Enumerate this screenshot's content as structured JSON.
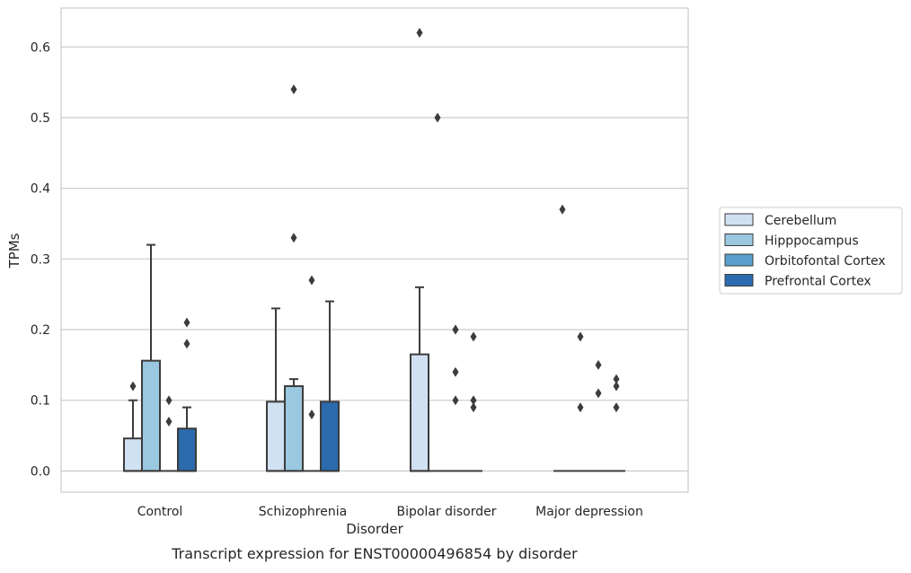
{
  "chart_data": {
    "type": "box",
    "caption": "Transcript expression for ENST00000496854 by disorder",
    "xlabel": "Disorder",
    "ylabel": "TPMs",
    "ylim": [
      -0.03,
      0.655
    ],
    "yticks": [
      0.0,
      0.1,
      0.2,
      0.3,
      0.4,
      0.5,
      0.6
    ],
    "ytick_labels": [
      "0.0",
      "0.1",
      "0.2",
      "0.3",
      "0.4",
      "0.5",
      "0.6"
    ],
    "grid": true,
    "legend_position": "right",
    "categories": [
      "Control",
      "Schizophrenia",
      "Bipolar disorder",
      "Major depression"
    ],
    "series": [
      {
        "name": "Cerebellum",
        "color": "#d0e1f2",
        "boxes": [
          {
            "q1": 0.0,
            "q3": 0.046,
            "median": 0.0,
            "whisker_low": 0.0,
            "whisker_high": 0.1,
            "outliers": [
              0.12
            ]
          },
          {
            "q1": 0.0,
            "q3": 0.098,
            "median": 0.0,
            "whisker_low": 0.0,
            "whisker_high": 0.23,
            "outliers": []
          },
          {
            "q1": 0.0,
            "q3": 0.165,
            "median": 0.0,
            "whisker_low": 0.0,
            "whisker_high": 0.26,
            "outliers": [
              0.62
            ]
          },
          {
            "q1": 0.0,
            "q3": 0.0,
            "median": 0.0,
            "whisker_low": 0.0,
            "whisker_high": 0.0,
            "outliers": [
              0.37
            ]
          }
        ]
      },
      {
        "name": "Hipppocampus",
        "color": "#9ac8e0",
        "boxes": [
          {
            "q1": 0.0,
            "q3": 0.156,
            "median": 0.0,
            "whisker_low": 0.0,
            "whisker_high": 0.32,
            "outliers": []
          },
          {
            "q1": 0.0,
            "q3": 0.12,
            "median": 0.0,
            "whisker_low": 0.0,
            "whisker_high": 0.13,
            "outliers": [
              0.54,
              0.33
            ]
          },
          {
            "q1": 0.0,
            "q3": 0.0,
            "median": 0.0,
            "whisker_low": 0.0,
            "whisker_high": 0.0,
            "outliers": [
              0.5
            ]
          },
          {
            "q1": 0.0,
            "q3": 0.0,
            "median": 0.0,
            "whisker_low": 0.0,
            "whisker_high": 0.0,
            "outliers": [
              0.19,
              0.09
            ]
          }
        ]
      },
      {
        "name": "Orbitofontal Cortex",
        "color": "#5a9fcd",
        "boxes": [
          {
            "q1": 0.0,
            "q3": 0.0,
            "median": 0.0,
            "whisker_low": 0.0,
            "whisker_high": 0.0,
            "outliers": [
              0.1,
              0.07
            ]
          },
          {
            "q1": 0.0,
            "q3": 0.0,
            "median": 0.0,
            "whisker_low": 0.0,
            "whisker_high": 0.0,
            "outliers": [
              0.27,
              0.08
            ]
          },
          {
            "q1": 0.0,
            "q3": 0.0,
            "median": 0.0,
            "whisker_low": 0.0,
            "whisker_high": 0.0,
            "outliers": [
              0.2,
              0.1,
              0.2,
              0.14
            ]
          },
          {
            "q1": 0.0,
            "q3": 0.0,
            "median": 0.0,
            "whisker_low": 0.0,
            "whisker_high": 0.0,
            "outliers": [
              0.15,
              0.11
            ]
          }
        ]
      },
      {
        "name": "Prefrontal Cortex",
        "color": "#2a6aad",
        "boxes": [
          {
            "q1": 0.0,
            "q3": 0.06,
            "median": 0.0,
            "whisker_low": 0.0,
            "whisker_high": 0.09,
            "outliers": [
              0.21,
              0.18
            ]
          },
          {
            "q1": 0.0,
            "q3": 0.098,
            "median": 0.0,
            "whisker_low": 0.0,
            "whisker_high": 0.24,
            "outliers": []
          },
          {
            "q1": 0.0,
            "q3": 0.0,
            "median": 0.0,
            "whisker_low": 0.0,
            "whisker_high": 0.0,
            "outliers": [
              0.19,
              0.1,
              0.09
            ]
          },
          {
            "q1": 0.0,
            "q3": 0.0,
            "median": 0.0,
            "whisker_low": 0.0,
            "whisker_high": 0.0,
            "outliers": [
              0.13,
              0.12,
              0.09
            ]
          }
        ]
      }
    ]
  }
}
